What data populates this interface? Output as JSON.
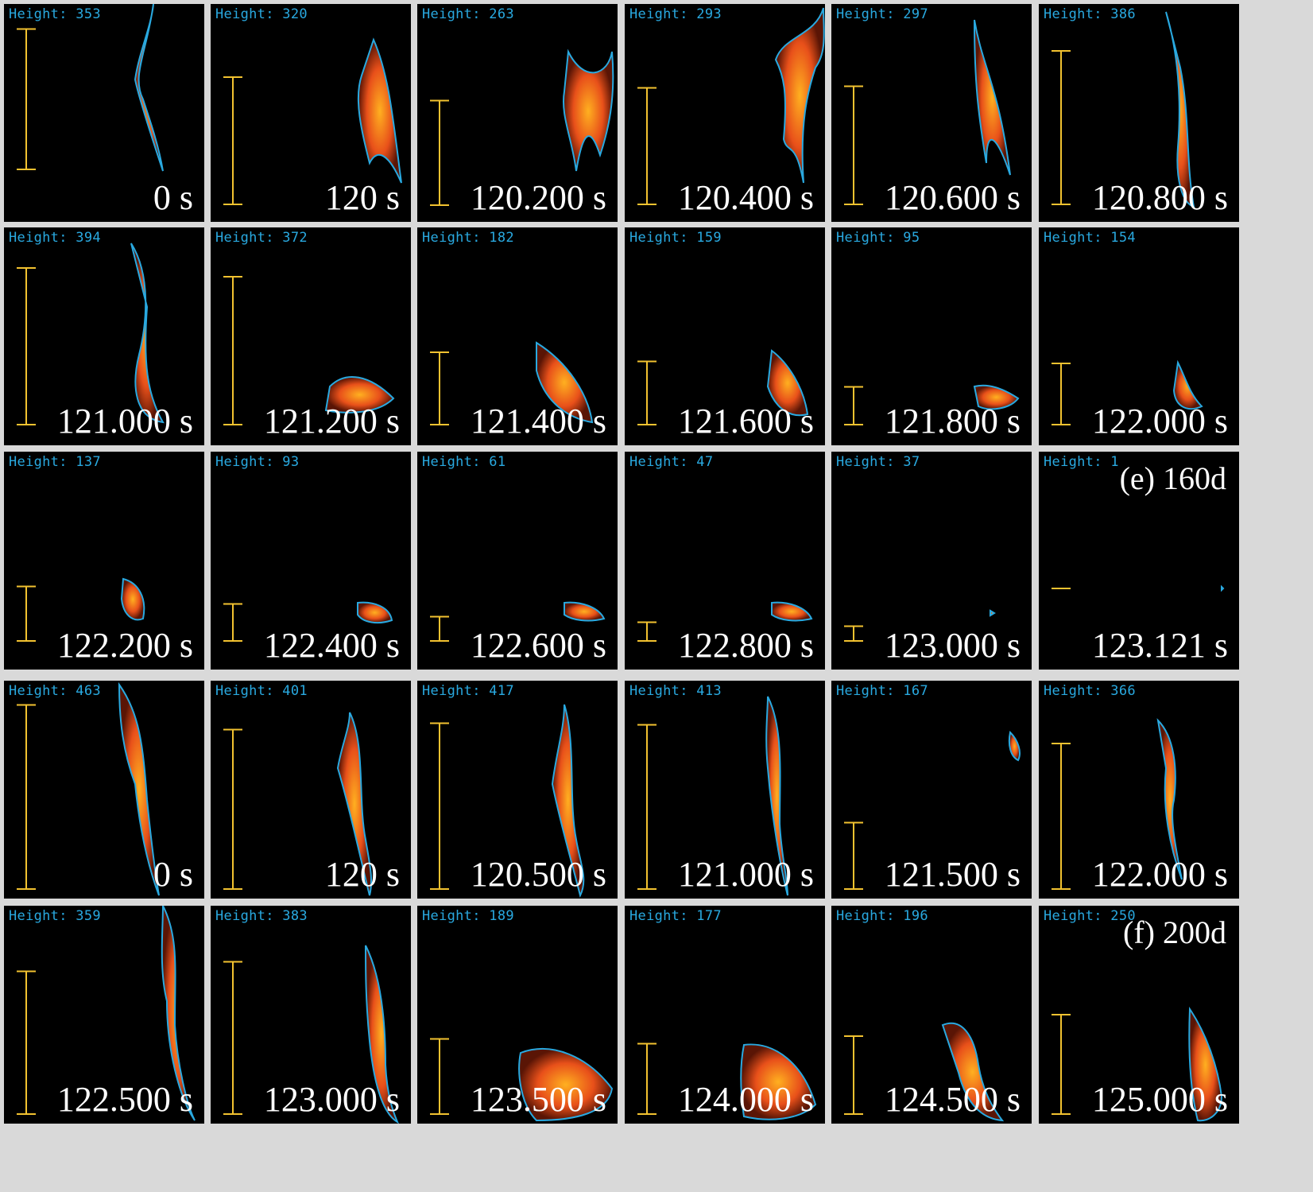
{
  "case_labels": [
    "(e) 160d",
    "(f) 200d"
  ],
  "colors": {
    "background": "#d9d9d9",
    "panel": "#000000",
    "contour": "#29a9e0",
    "scale_bar": "#f2c230",
    "flame_core": "#ffb020",
    "flame_outer": "#e8501a"
  },
  "panels": [
    {
      "height_label": "Height: 353",
      "time": "0 s",
      "height": 353
    },
    {
      "height_label": "Height: 320",
      "time": "120 s",
      "height": 320
    },
    {
      "height_label": "Height: 263",
      "time": "120.200 s",
      "height": 263
    },
    {
      "height_label": "Height: 293",
      "time": "120.400 s",
      "height": 293
    },
    {
      "height_label": "Height: 297",
      "time": "120.600 s",
      "height": 297
    },
    {
      "height_label": "Height: 386",
      "time": "120.800 s",
      "height": 386
    },
    {
      "height_label": "Height: 394",
      "time": "121.000 s",
      "height": 394
    },
    {
      "height_label": "Height: 372",
      "time": "121.200 s",
      "height": 372
    },
    {
      "height_label": "Height: 182",
      "time": "121.400 s",
      "height": 182
    },
    {
      "height_label": "Height: 159",
      "time": "121.600 s",
      "height": 159
    },
    {
      "height_label": "Height: 95",
      "time": "121.800 s",
      "height": 95
    },
    {
      "height_label": "Height: 154",
      "time": "122.000 s",
      "height": 154
    },
    {
      "height_label": "Height: 137",
      "time": "122.200 s",
      "height": 137
    },
    {
      "height_label": "Height: 93",
      "time": "122.400 s",
      "height": 93
    },
    {
      "height_label": "Height: 61",
      "time": "122.600 s",
      "height": 61
    },
    {
      "height_label": "Height: 47",
      "time": "122.800 s",
      "height": 47
    },
    {
      "height_label": "Height: 37",
      "time": "123.000 s",
      "height": 37
    },
    {
      "height_label": "Height: 1",
      "time": "123.121 s",
      "height": 1
    },
    {
      "height_label": "Height: 463",
      "time": "0 s",
      "height": 463
    },
    {
      "height_label": "Height: 401",
      "time": "120 s",
      "height": 401
    },
    {
      "height_label": "Height: 417",
      "time": "120.500 s",
      "height": 417
    },
    {
      "height_label": "Height: 413",
      "time": "121.000 s",
      "height": 413
    },
    {
      "height_label": "Height: 167",
      "time": "121.500 s",
      "height": 167
    },
    {
      "height_label": "Height: 366",
      "time": "122.000 s",
      "height": 366
    },
    {
      "height_label": "Height: 359",
      "time": "122.500 s",
      "height": 359
    },
    {
      "height_label": "Height: 383",
      "time": "123.000 s",
      "height": 383
    },
    {
      "height_label": "Height: 189",
      "time": "123.500 s",
      "height": 189
    },
    {
      "height_label": "Height: 177",
      "time": "124.000 s",
      "height": 177
    },
    {
      "height_label": "Height: 196",
      "time": "124.500 s",
      "height": 196
    },
    {
      "height_label": "Height: 250",
      "time": "125.000 s",
      "height": 250
    }
  ]
}
